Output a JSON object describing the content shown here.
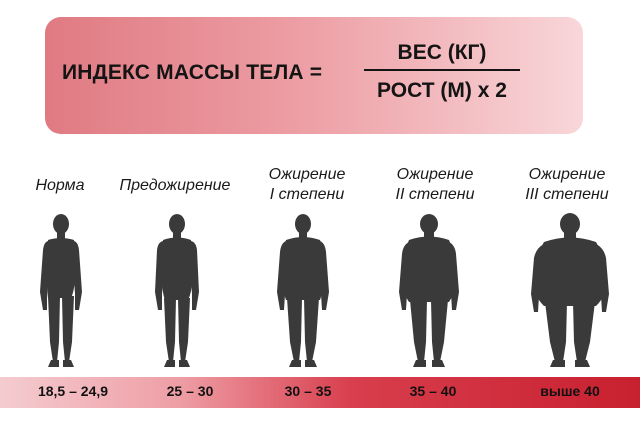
{
  "formula": {
    "label": "ИНДЕКС МАССЫ ТЕЛА =",
    "numerator": "ВЕС (КГ)",
    "denominator": "РОСТ (М) х 2"
  },
  "categories": [
    {
      "name": "Норма",
      "range": "18,5  – 24,9",
      "silhouette": "slim-body-icon"
    },
    {
      "name": "Предожирение",
      "range": "25 – 30",
      "silhouette": "overweight-body-icon"
    },
    {
      "name_line1": "Ожирение",
      "name_line2": "I степени",
      "range": "30 – 35",
      "silhouette": "obesity-1-body-icon"
    },
    {
      "name_line1": "Ожирение",
      "name_line2": "II степени",
      "range": "35 – 40",
      "silhouette": "obesity-2-body-icon"
    },
    {
      "name_line1": "Ожирение",
      "name_line2": "III степени",
      "range": "выше 40",
      "silhouette": "obesity-3-body-icon"
    }
  ],
  "colors": {
    "silhouette": "#3a3a3a",
    "formula_bg_start": "#e07a82",
    "formula_bg_end": "#f8d6d9",
    "bar_start": "#f4ccd0",
    "bar_end": "#c8202f"
  }
}
